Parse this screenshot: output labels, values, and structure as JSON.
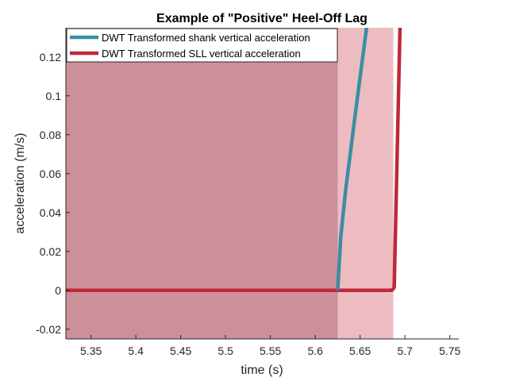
{
  "chart_data": {
    "type": "line",
    "title": "Example of \"Positive\" Heel-Off Lag",
    "xlabel": "time (s)",
    "ylabel": "acceleration (m/s)",
    "xlim": [
      5.322,
      5.76
    ],
    "ylim": [
      -0.025,
      0.135
    ],
    "xticks": [
      5.35,
      5.4,
      5.45,
      5.5,
      5.55,
      5.6,
      5.65,
      5.7,
      5.75
    ],
    "xtick_labels": [
      "5.35",
      "5.4",
      "5.45",
      "5.5",
      "5.55",
      "5.6",
      "5.65",
      "5.7",
      "5.75"
    ],
    "yticks": [
      -0.02,
      0,
      0.02,
      0.04,
      0.06,
      0.08,
      0.1,
      0.12
    ],
    "ytick_labels": [
      "-0.02",
      "0",
      "0.02",
      "0.04",
      "0.06",
      "0.08",
      "0.1",
      "0.12"
    ],
    "grid": false,
    "legend_position": "top-left",
    "shaded_regions": [
      {
        "x0": 5.322,
        "x1": 5.625,
        "color": "#7f4f61",
        "opacity": 0.5
      },
      {
        "x0": 5.322,
        "x1": 5.687,
        "color": "#d97a84",
        "opacity": 0.5
      }
    ],
    "series": [
      {
        "name": "DWT Transformed shank vertical acceleration",
        "color": "#3a8ea5",
        "x": [
          5.625,
          5.6285,
          5.634,
          5.645,
          5.6575
        ],
        "y": [
          0.0,
          0.028,
          0.052,
          0.092,
          0.136
        ]
      },
      {
        "name": "DWT Transformed SLL vertical acceleration",
        "color": "#c0283a",
        "x": [
          5.322,
          5.45,
          5.55,
          5.6855,
          5.688,
          5.6945
        ],
        "y": [
          0.0,
          0.0,
          0.0,
          0.0,
          0.0015,
          0.136
        ]
      }
    ]
  }
}
